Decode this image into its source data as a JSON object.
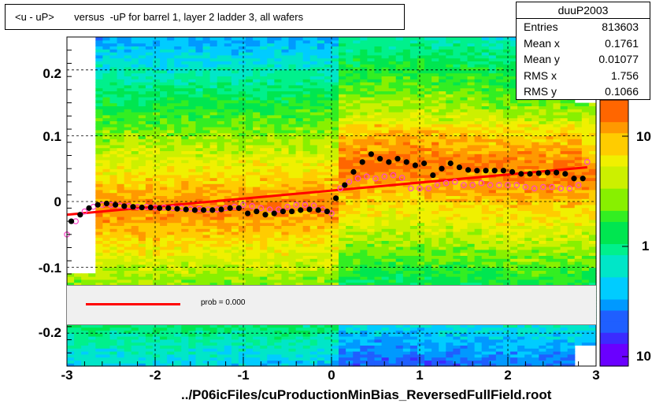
{
  "title": "<u - uP>       versus  -uP for barrel 1, layer 2 ladder 3, all wafers",
  "stats": {
    "name": "duuP2003",
    "rows": [
      {
        "label": "Entries",
        "value": "813603"
      },
      {
        "label": "Mean x",
        "value": "0.1761"
      },
      {
        "label": "Mean y",
        "value": "0.01077"
      },
      {
        "label": "RMS x",
        "value": "1.756"
      },
      {
        "label": "RMS y",
        "value": "0.1066"
      }
    ]
  },
  "legend": {
    "fit_label": "prob = 0.000",
    "fit_color": "#ff0000"
  },
  "footer": "../P06icFiles/cuProductionMinBias_ReversedFullField.root",
  "colors": {
    "profile_black": "#000000",
    "profile_magenta": "#ff44cc",
    "fit": "#ff0000"
  },
  "chart_data": {
    "type": "heatmap",
    "title": "<u - uP>       versus  -uP for barrel 1, layer 2 ladder 3, all wafers",
    "xlim": [
      -3,
      3
    ],
    "ylim": [
      -0.25,
      0.25
    ],
    "x_ticks": [
      "-3",
      "-2",
      "-1",
      "0",
      "1",
      "2",
      "3"
    ],
    "y_ticks": [
      "0.2",
      "0.1",
      "0",
      "-0.1",
      "-0.2"
    ],
    "z_scale": "log",
    "z_ticks": [
      "10",
      "1",
      "10"
    ],
    "grid": true,
    "fit_line": {
      "x": [
        -3.0,
        2.9
      ],
      "y": [
        -0.02,
        0.052
      ]
    },
    "series": [
      {
        "x": [
          -2.95,
          -2.85,
          -2.75,
          -2.65,
          -2.55,
          -2.45,
          -2.35,
          -2.25,
          -2.15,
          -2.05,
          -1.95,
          -1.85,
          -1.75,
          -1.65,
          -1.55,
          -1.45,
          -1.35,
          -1.25,
          -1.15,
          -1.05,
          -0.95,
          -0.85,
          -0.75,
          -0.65,
          -0.55,
          -0.45,
          -0.35,
          -0.25,
          -0.15,
          -0.05,
          0.05,
          0.15,
          0.25,
          0.35,
          0.45,
          0.55,
          0.65,
          0.75,
          0.85,
          0.95,
          1.05,
          1.15,
          1.25,
          1.35,
          1.45,
          1.55,
          1.65,
          1.75,
          1.85,
          1.95,
          2.05,
          2.15,
          2.25,
          2.35,
          2.45,
          2.55,
          2.65,
          2.75,
          2.85
        ],
        "y": [
          -0.03,
          -0.02,
          -0.01,
          -0.005,
          -0.003,
          -0.005,
          -0.007,
          -0.008,
          -0.009,
          -0.009,
          -0.01,
          -0.01,
          -0.011,
          -0.012,
          -0.013,
          -0.013,
          -0.013,
          -0.012,
          -0.01,
          -0.01,
          -0.018,
          -0.015,
          -0.02,
          -0.018,
          -0.015,
          -0.015,
          -0.013,
          -0.012,
          -0.013,
          -0.015,
          0.005,
          0.025,
          0.045,
          0.06,
          0.072,
          0.065,
          0.06,
          0.065,
          0.06,
          0.055,
          0.058,
          0.04,
          0.05,
          0.058,
          0.052,
          0.048,
          0.047,
          0.047,
          0.047,
          0.047,
          0.045,
          0.042,
          0.042,
          0.043,
          0.044,
          0.044,
          0.042,
          0.035,
          0.035
        ]
      },
      {
        "x": [
          -3.0,
          -2.9,
          -2.8,
          -2.7,
          -2.6,
          -2.5,
          -2.4,
          -2.3,
          -2.2,
          -2.1,
          -2.0,
          -1.9,
          -1.8,
          -1.7,
          -1.6,
          -1.5,
          -1.4,
          -1.3,
          -1.2,
          -1.1,
          -1.0,
          -0.9,
          -0.8,
          -0.7,
          -0.6,
          -0.5,
          -0.4,
          -0.3,
          -0.2,
          -0.1,
          0.0,
          0.1,
          0.2,
          0.3,
          0.4,
          0.5,
          0.6,
          0.7,
          0.8,
          0.9,
          1.0,
          1.1,
          1.2,
          1.3,
          1.4,
          1.5,
          1.6,
          1.7,
          1.8,
          1.9,
          2.0,
          2.1,
          2.2,
          2.3,
          2.4,
          2.5,
          2.6,
          2.7,
          2.8,
          2.9
        ],
        "y": [
          -0.05,
          -0.03,
          -0.015,
          -0.008,
          -0.005,
          -0.005,
          -0.006,
          -0.007,
          -0.008,
          -0.008,
          -0.009,
          -0.009,
          -0.01,
          -0.01,
          -0.011,
          -0.011,
          -0.012,
          -0.012,
          -0.01,
          -0.008,
          -0.005,
          -0.007,
          -0.01,
          -0.012,
          -0.012,
          -0.008,
          -0.005,
          -0.005,
          -0.006,
          -0.012,
          -0.018,
          0.02,
          0.03,
          0.035,
          0.038,
          0.035,
          0.038,
          0.04,
          0.036,
          0.02,
          0.02,
          0.02,
          0.025,
          0.028,
          0.03,
          0.025,
          0.025,
          0.028,
          0.025,
          0.025,
          0.025,
          0.025,
          0.022,
          0.02,
          0.022,
          0.022,
          0.02,
          0.02,
          0.025,
          0.06
        ]
      }
    ]
  }
}
